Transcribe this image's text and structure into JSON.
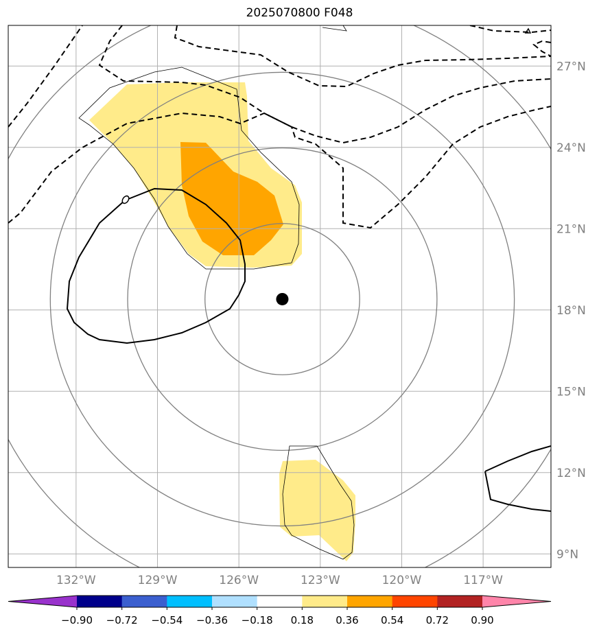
{
  "title": "2025070800 F048",
  "map": {
    "lon_range": [
      -134.5,
      -114.5
    ],
    "lat_range": [
      8.5,
      28.5
    ],
    "lat_labels": [
      {
        "value": 9,
        "text": "9°N"
      },
      {
        "value": 12,
        "text": "12°N"
      },
      {
        "value": 15,
        "text": "15°N"
      },
      {
        "value": 18,
        "text": "18°N"
      },
      {
        "value": 21,
        "text": "21°N"
      },
      {
        "value": 24,
        "text": "24°N"
      },
      {
        "value": 27,
        "text": "27°N"
      }
    ],
    "lon_labels": [
      {
        "value": -132,
        "text": "132°W"
      },
      {
        "value": -129,
        "text": "129°W"
      },
      {
        "value": -126,
        "text": "126°W"
      },
      {
        "value": -123,
        "text": "123°W"
      },
      {
        "value": -120,
        "text": "120°W"
      },
      {
        "value": -117,
        "text": "117°W"
      }
    ],
    "gridlines": true,
    "center_marker": {
      "lon": -124.4,
      "lat": 18.4
    },
    "range_rings_center": {
      "lon": -124.4,
      "lat": 18.4
    },
    "range_ring_radii_deg": [
      3,
      6,
      9,
      12
    ],
    "contour_label": "0",
    "colors": {
      "light_yellow": "#ffeb8a",
      "orange": "#ffa500",
      "ring": "#808080",
      "grid": "#b0b0b0"
    }
  },
  "colorbar": {
    "tick_labels": [
      "−0.90",
      "−0.72",
      "−0.54",
      "−0.36",
      "−0.18",
      "0.18",
      "0.36",
      "0.54",
      "0.72",
      "0.90"
    ],
    "colors": [
      "#9932cc",
      "#00008b",
      "#3b5fcf",
      "#00bfff",
      "#b0e0ff",
      "#ffffff",
      "#ffeb8a",
      "#ffa500",
      "#ff4500",
      "#b22222",
      "#ff85aa"
    ]
  }
}
